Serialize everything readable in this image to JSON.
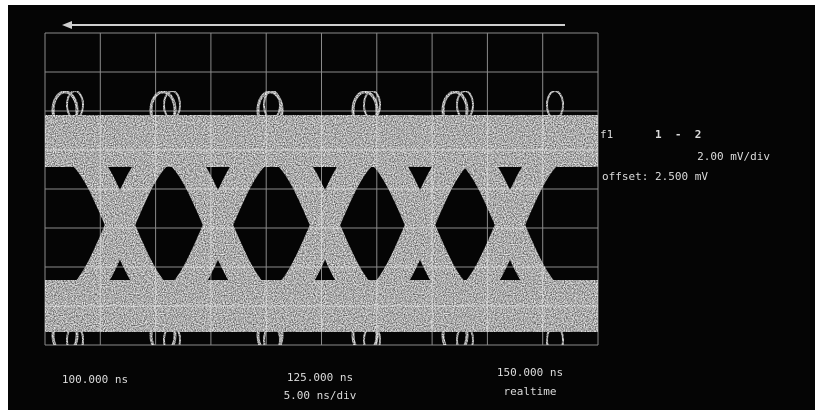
{
  "channel": {
    "label": "f1",
    "source": "1  -  2",
    "scale": "2.00 mV/div",
    "offset": "offset: 2.500 mV"
  },
  "timebase": {
    "left": "100.000 ns",
    "center": "125.000 ns",
    "per_div": "5.00 ns/div",
    "right": "150.000 ns",
    "mode": "realtime"
  }
}
